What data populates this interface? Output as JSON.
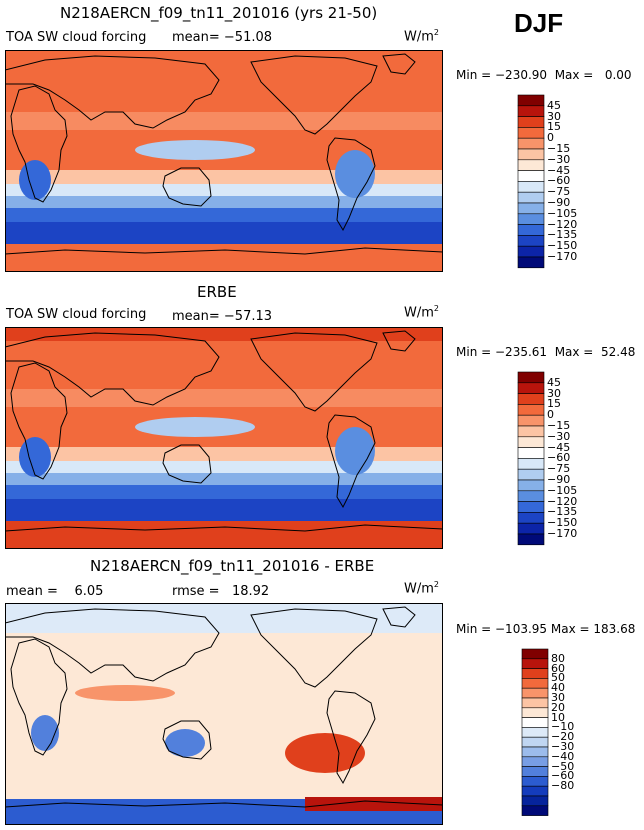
{
  "season": "DJF",
  "colors": {
    "panel_a_b": [
      "#800000",
      "#b8140c",
      "#e0401c",
      "#f26a3c",
      "#f8946a",
      "#fcc4a4",
      "#fde8d6",
      "#ffffff",
      "#d8e8f8",
      "#b0cdf0",
      "#86b0e8",
      "#5a8ee0",
      "#3468d8",
      "#1c44c4",
      "#0c24a8",
      "#000a78"
    ],
    "panel_c": [
      "#800000",
      "#b8140c",
      "#e0401c",
      "#f26a3c",
      "#f8946a",
      "#fcc4a4",
      "#fde8d6",
      "#ffffff",
      "#ddeaf8",
      "#c0d6f2",
      "#9cbcec",
      "#789ee4",
      "#5280dc",
      "#2c5cd0",
      "#143cbc",
      "#06249c",
      "#000a78"
    ]
  },
  "chart_data": [
    {
      "type": "heatmap",
      "title": "N218AERCN_f09_tn11_201016 (yrs 21-50)",
      "variable": "TOA SW cloud forcing",
      "mean_label": "mean=",
      "mean": "−51.08",
      "units_base": "W/m",
      "units_exp": "2",
      "min_label": "Min =",
      "min": "−230.90",
      "max_label": "Max =",
      "max": "0.00",
      "colorbar_levels": [
        "45",
        "30",
        "15",
        "0",
        "−15",
        "−30",
        "−45",
        "−60",
        "−75",
        "−90",
        "−105",
        "−120",
        "−135",
        "−150",
        "−170"
      ]
    },
    {
      "type": "heatmap",
      "title": "ERBE",
      "variable": "TOA SW cloud forcing",
      "mean_label": "mean=",
      "mean": "−57.13",
      "units_base": "W/m",
      "units_exp": "2",
      "min_label": "Min =",
      "min": "−235.61",
      "max_label": "Max =",
      "max": "52.48",
      "colorbar_levels": [
        "45",
        "30",
        "15",
        "0",
        "−15",
        "−30",
        "−45",
        "−60",
        "−75",
        "−90",
        "−105",
        "−120",
        "−135",
        "−150",
        "−170"
      ]
    },
    {
      "type": "heatmap",
      "title": "N218AERCN_f09_tn11_201016 - ERBE",
      "mean_label": "mean =",
      "mean": "6.05",
      "rmse_label": "rmse =",
      "rmse": "18.92",
      "units_base": "W/m",
      "units_exp": "2",
      "min_label": "Min =",
      "min": "−103.95",
      "max_label": "Max =",
      "max": "183.68",
      "colorbar_levels": [
        "80",
        "60",
        "50",
        "40",
        "30",
        "20",
        "10",
        "−10",
        "−20",
        "−30",
        "−40",
        "−50",
        "−60",
        "−80"
      ]
    }
  ]
}
